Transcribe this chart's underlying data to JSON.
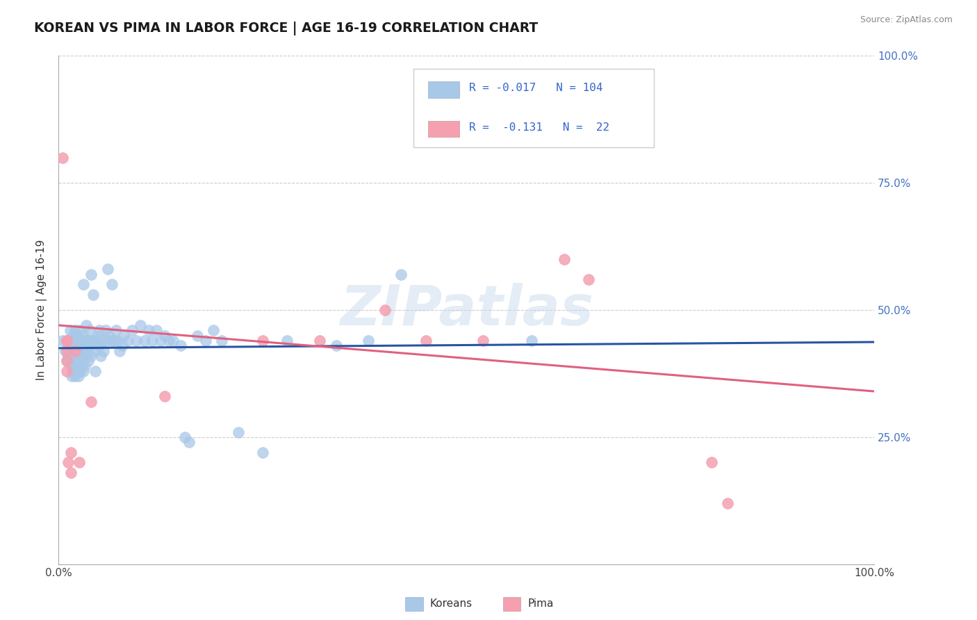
{
  "title": "KOREAN VS PIMA IN LABOR FORCE | AGE 16-19 CORRELATION CHART",
  "source": "Source: ZipAtlas.com",
  "ylabel": "In Labor Force | Age 16-19",
  "korean_color": "#a8c8e8",
  "pima_color": "#f4a0b0",
  "korean_line_color": "#2855a0",
  "pima_line_color": "#e06080",
  "watermark": "ZIPatlas",
  "korean_intercept": 0.425,
  "korean_slope": 0.012,
  "pima_intercept": 0.47,
  "pima_slope": -0.13,
  "korean_points": [
    [
      0.005,
      0.44
    ],
    [
      0.008,
      0.42
    ],
    [
      0.01,
      0.44
    ],
    [
      0.01,
      0.4
    ],
    [
      0.012,
      0.43
    ],
    [
      0.012,
      0.41
    ],
    [
      0.014,
      0.46
    ],
    [
      0.014,
      0.43
    ],
    [
      0.014,
      0.4
    ],
    [
      0.016,
      0.44
    ],
    [
      0.016,
      0.42
    ],
    [
      0.016,
      0.39
    ],
    [
      0.016,
      0.37
    ],
    [
      0.018,
      0.45
    ],
    [
      0.018,
      0.43
    ],
    [
      0.018,
      0.41
    ],
    [
      0.018,
      0.38
    ],
    [
      0.02,
      0.46
    ],
    [
      0.02,
      0.44
    ],
    [
      0.02,
      0.42
    ],
    [
      0.02,
      0.39
    ],
    [
      0.02,
      0.37
    ],
    [
      0.022,
      0.45
    ],
    [
      0.022,
      0.43
    ],
    [
      0.022,
      0.41
    ],
    [
      0.022,
      0.38
    ],
    [
      0.024,
      0.44
    ],
    [
      0.024,
      0.42
    ],
    [
      0.024,
      0.4
    ],
    [
      0.024,
      0.37
    ],
    [
      0.026,
      0.46
    ],
    [
      0.026,
      0.43
    ],
    [
      0.026,
      0.41
    ],
    [
      0.026,
      0.38
    ],
    [
      0.028,
      0.44
    ],
    [
      0.028,
      0.42
    ],
    [
      0.028,
      0.39
    ],
    [
      0.03,
      0.55
    ],
    [
      0.03,
      0.45
    ],
    [
      0.03,
      0.43
    ],
    [
      0.03,
      0.41
    ],
    [
      0.03,
      0.38
    ],
    [
      0.032,
      0.44
    ],
    [
      0.032,
      0.42
    ],
    [
      0.032,
      0.39
    ],
    [
      0.034,
      0.47
    ],
    [
      0.034,
      0.44
    ],
    [
      0.034,
      0.41
    ],
    [
      0.036,
      0.43
    ],
    [
      0.036,
      0.4
    ],
    [
      0.038,
      0.46
    ],
    [
      0.038,
      0.43
    ],
    [
      0.04,
      0.57
    ],
    [
      0.04,
      0.44
    ],
    [
      0.04,
      0.41
    ],
    [
      0.042,
      0.53
    ],
    [
      0.042,
      0.44
    ],
    [
      0.045,
      0.44
    ],
    [
      0.045,
      0.42
    ],
    [
      0.045,
      0.38
    ],
    [
      0.048,
      0.45
    ],
    [
      0.048,
      0.43
    ],
    [
      0.05,
      0.46
    ],
    [
      0.05,
      0.43
    ],
    [
      0.052,
      0.41
    ],
    [
      0.055,
      0.44
    ],
    [
      0.055,
      0.42
    ],
    [
      0.058,
      0.46
    ],
    [
      0.06,
      0.58
    ],
    [
      0.06,
      0.44
    ],
    [
      0.062,
      0.45
    ],
    [
      0.065,
      0.55
    ],
    [
      0.065,
      0.44
    ],
    [
      0.068,
      0.44
    ],
    [
      0.07,
      0.46
    ],
    [
      0.072,
      0.44
    ],
    [
      0.075,
      0.42
    ],
    [
      0.078,
      0.43
    ],
    [
      0.08,
      0.45
    ],
    [
      0.085,
      0.44
    ],
    [
      0.09,
      0.46
    ],
    [
      0.095,
      0.44
    ],
    [
      0.1,
      0.47
    ],
    [
      0.105,
      0.44
    ],
    [
      0.11,
      0.46
    ],
    [
      0.115,
      0.44
    ],
    [
      0.12,
      0.46
    ],
    [
      0.125,
      0.44
    ],
    [
      0.13,
      0.45
    ],
    [
      0.135,
      0.44
    ],
    [
      0.14,
      0.44
    ],
    [
      0.15,
      0.43
    ],
    [
      0.155,
      0.25
    ],
    [
      0.16,
      0.24
    ],
    [
      0.17,
      0.45
    ],
    [
      0.18,
      0.44
    ],
    [
      0.19,
      0.46
    ],
    [
      0.2,
      0.44
    ],
    [
      0.22,
      0.26
    ],
    [
      0.25,
      0.22
    ],
    [
      0.28,
      0.44
    ],
    [
      0.34,
      0.43
    ],
    [
      0.38,
      0.44
    ],
    [
      0.42,
      0.57
    ],
    [
      0.58,
      0.44
    ]
  ],
  "pima_points": [
    [
      0.005,
      0.8
    ],
    [
      0.01,
      0.44
    ],
    [
      0.01,
      0.42
    ],
    [
      0.01,
      0.4
    ],
    [
      0.01,
      0.38
    ],
    [
      0.01,
      0.44
    ],
    [
      0.012,
      0.2
    ],
    [
      0.015,
      0.22
    ],
    [
      0.015,
      0.18
    ],
    [
      0.02,
      0.42
    ],
    [
      0.025,
      0.2
    ],
    [
      0.04,
      0.32
    ],
    [
      0.13,
      0.33
    ],
    [
      0.25,
      0.44
    ],
    [
      0.32,
      0.44
    ],
    [
      0.4,
      0.5
    ],
    [
      0.45,
      0.44
    ],
    [
      0.52,
      0.44
    ],
    [
      0.62,
      0.6
    ],
    [
      0.65,
      0.56
    ],
    [
      0.8,
      0.2
    ],
    [
      0.82,
      0.12
    ]
  ]
}
